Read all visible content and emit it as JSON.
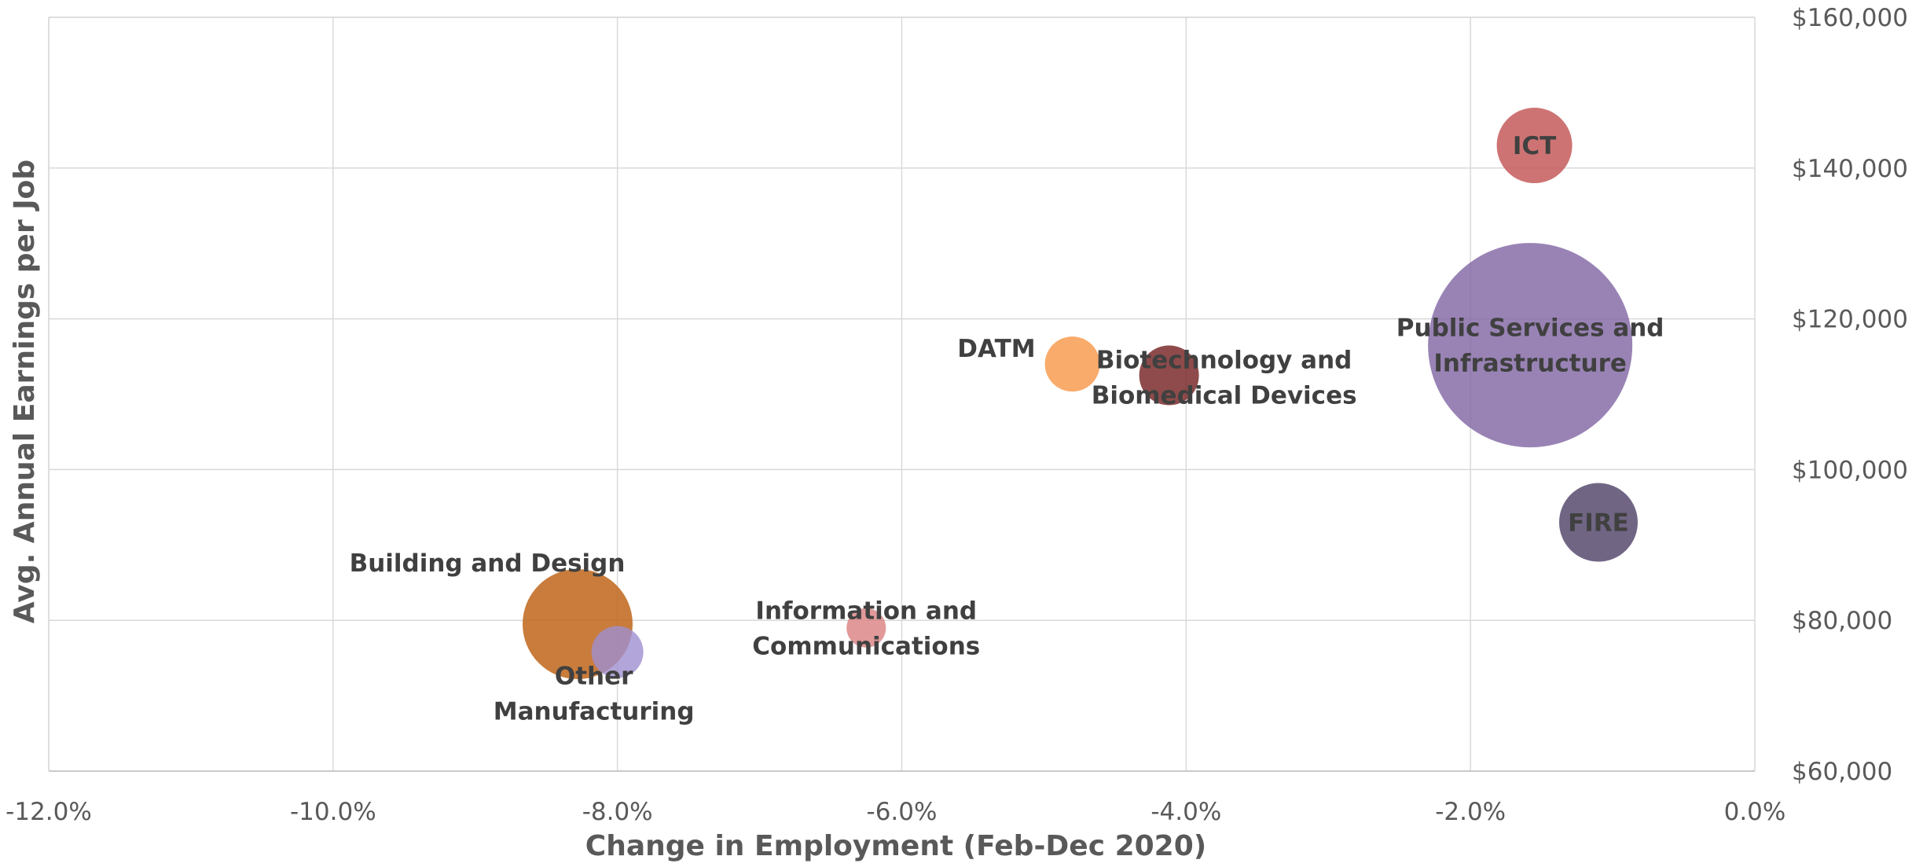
{
  "chart_data": {
    "type": "scatter",
    "subtype": "bubble",
    "title": "",
    "xlabel": "Change in Employment (Feb-Dec 2020)",
    "ylabel": "Avg. Annual Earnings per Job",
    "xlim": [
      -0.12,
      0.0
    ],
    "ylim": [
      60000,
      160000
    ],
    "x_ticks": [
      -0.12,
      -0.1,
      -0.08,
      -0.06,
      -0.04,
      -0.02,
      0.0
    ],
    "x_tick_labels": [
      "-12.0%",
      "-10.0%",
      "-8.0%",
      "-6.0%",
      "-4.0%",
      "-2.0%",
      "0.0%"
    ],
    "y_ticks": [
      60000,
      80000,
      100000,
      120000,
      140000,
      160000
    ],
    "y_tick_labels": [
      "$60,000",
      "$80,000",
      "$100,000",
      "$120,000",
      "$140,000",
      "$160,000"
    ],
    "y_axis_side": "right",
    "grid": true,
    "legend": "none",
    "series": [
      {
        "label": [
          "ICT"
        ],
        "x": -0.0155,
        "y": 143000,
        "size": 48,
        "color": "#c55a5a",
        "opacity": 0.85,
        "label_anchor": "center"
      },
      {
        "label": [
          "Public Services and",
          "Infrastructure"
        ],
        "x": -0.0158,
        "y": 116500,
        "size": 130,
        "color": "#8064a2",
        "opacity": 0.8,
        "label_anchor": "center"
      },
      {
        "label": [
          "FIRE"
        ],
        "x": -0.011,
        "y": 93000,
        "size": 50,
        "color": "#584a6e",
        "opacity": 0.85,
        "label_anchor": "center"
      },
      {
        "label": [
          "DATM"
        ],
        "x": -0.048,
        "y": 114000,
        "size": 35,
        "color": "#f79646",
        "opacity": 0.8,
        "label_anchor": "left"
      },
      {
        "label": [
          "Biotechnology and",
          "Biomedical Devices"
        ],
        "x": -0.0412,
        "y": 112500,
        "size": 38,
        "color": "#7b2c2c",
        "opacity": 0.85,
        "label_anchor": "offset"
      },
      {
        "label": [
          "Information and",
          "Communications"
        ],
        "x": -0.0625,
        "y": 79000,
        "size": 25,
        "color": "#d98080",
        "opacity": 0.8,
        "label_anchor": "center"
      },
      {
        "label": [
          "Building and Design"
        ],
        "x": -0.0828,
        "y": 79500,
        "size": 70,
        "color": "#c0651a",
        "opacity": 0.85,
        "label_anchor": "above-left"
      },
      {
        "label": [
          "Other",
          "Manufacturing"
        ],
        "x": -0.08,
        "y": 75800,
        "size": 33,
        "color": "#9f8fd0",
        "opacity": 0.8,
        "label_anchor": "below"
      }
    ]
  }
}
